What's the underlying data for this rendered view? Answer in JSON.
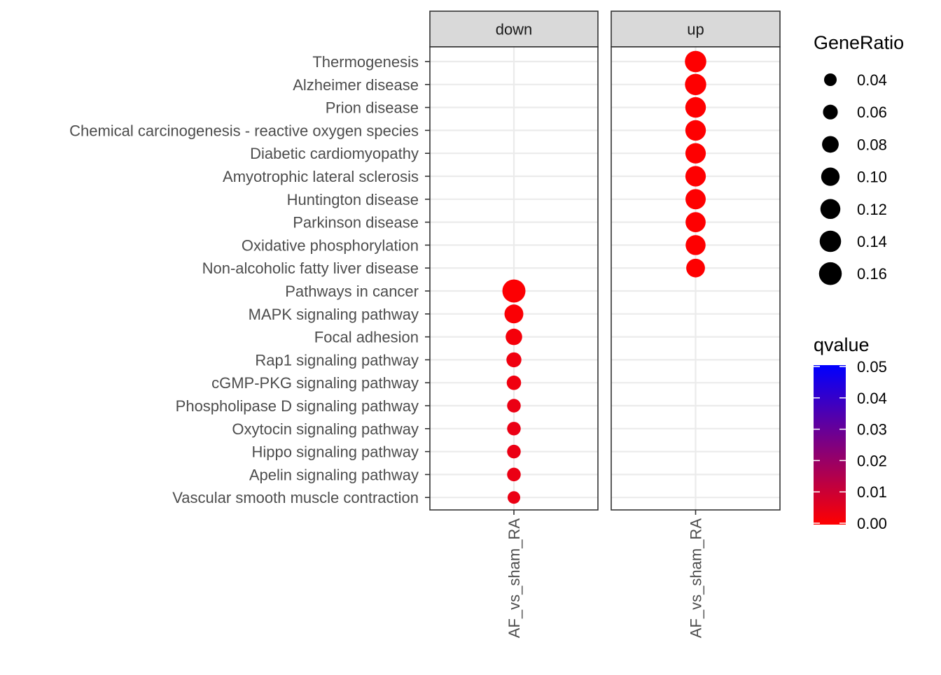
{
  "chart_data": {
    "type": "scatter",
    "title": "",
    "xlabel": "",
    "ylabel": "",
    "facets": [
      "down",
      "up"
    ],
    "x_categories": [
      "AF_vs_sham_RA"
    ],
    "categories": [
      "Thermogenesis",
      "Alzheimer disease",
      "Prion disease",
      "Chemical carcinogenesis - reactive oxygen species",
      "Diabetic cardiomyopathy",
      "Amyotrophic lateral sclerosis",
      "Huntington disease",
      "Parkinson disease",
      "Oxidative phosphorylation",
      "Non-alcoholic fatty liver disease",
      "Pathways in cancer",
      "MAPK signaling pathway",
      "Focal adhesion",
      "Rap1 signaling pathway",
      "cGMP-PKG signaling pathway",
      "Phospholipase D signaling pathway",
      "Oxytocin signaling pathway",
      "Hippo signaling pathway",
      "Apelin signaling pathway",
      "Vascular smooth muscle contraction"
    ],
    "points": [
      {
        "facet": "up",
        "x": "AF_vs_sham_RA",
        "y": "Thermogenesis",
        "GeneRatio": 0.14,
        "qvalue": 0.0001
      },
      {
        "facet": "up",
        "x": "AF_vs_sham_RA",
        "y": "Alzheimer disease",
        "GeneRatio": 0.138,
        "qvalue": 0.0001
      },
      {
        "facet": "up",
        "x": "AF_vs_sham_RA",
        "y": "Prion disease",
        "GeneRatio": 0.128,
        "qvalue": 0.0001
      },
      {
        "facet": "up",
        "x": "AF_vs_sham_RA",
        "y": "Chemical carcinogenesis - reactive oxygen species",
        "GeneRatio": 0.128,
        "qvalue": 0.0001
      },
      {
        "facet": "up",
        "x": "AF_vs_sham_RA",
        "y": "Diabetic cardiomyopathy",
        "GeneRatio": 0.126,
        "qvalue": 0.0001
      },
      {
        "facet": "up",
        "x": "AF_vs_sham_RA",
        "y": "Amyotrophic lateral sclerosis",
        "GeneRatio": 0.126,
        "qvalue": 0.0001
      },
      {
        "facet": "up",
        "x": "AF_vs_sham_RA",
        "y": "Huntington disease",
        "GeneRatio": 0.124,
        "qvalue": 0.0001
      },
      {
        "facet": "up",
        "x": "AF_vs_sham_RA",
        "y": "Parkinson disease",
        "GeneRatio": 0.122,
        "qvalue": 0.0001
      },
      {
        "facet": "up",
        "x": "AF_vs_sham_RA",
        "y": "Oxidative phosphorylation",
        "GeneRatio": 0.12,
        "qvalue": 0.0001
      },
      {
        "facet": "up",
        "x": "AF_vs_sham_RA",
        "y": "Non-alcoholic fatty liver disease",
        "GeneRatio": 0.104,
        "qvalue": 0.0001
      },
      {
        "facet": "down",
        "x": "AF_vs_sham_RA",
        "y": "Pathways in cancer",
        "GeneRatio": 0.165,
        "qvalue": 0.0005
      },
      {
        "facet": "down",
        "x": "AF_vs_sham_RA",
        "y": "MAPK signaling pathway",
        "GeneRatio": 0.106,
        "qvalue": 0.001
      },
      {
        "facet": "down",
        "x": "AF_vs_sham_RA",
        "y": "Focal adhesion",
        "GeneRatio": 0.078,
        "qvalue": 0.002
      },
      {
        "facet": "down",
        "x": "AF_vs_sham_RA",
        "y": "Rap1 signaling pathway",
        "GeneRatio": 0.062,
        "qvalue": 0.003
      },
      {
        "facet": "down",
        "x": "AF_vs_sham_RA",
        "y": "cGMP-PKG signaling pathway",
        "GeneRatio": 0.056,
        "qvalue": 0.003
      },
      {
        "facet": "down",
        "x": "AF_vs_sham_RA",
        "y": "Phospholipase D signaling pathway",
        "GeneRatio": 0.049,
        "qvalue": 0.004
      },
      {
        "facet": "down",
        "x": "AF_vs_sham_RA",
        "y": "Oxytocin signaling pathway",
        "GeneRatio": 0.049,
        "qvalue": 0.004
      },
      {
        "facet": "down",
        "x": "AF_vs_sham_RA",
        "y": "Hippo signaling pathway",
        "GeneRatio": 0.049,
        "qvalue": 0.004
      },
      {
        "facet": "down",
        "x": "AF_vs_sham_RA",
        "y": "Apelin signaling pathway",
        "GeneRatio": 0.049,
        "qvalue": 0.004
      },
      {
        "facet": "down",
        "x": "AF_vs_sham_RA",
        "y": "Vascular smooth muscle contraction",
        "GeneRatio": 0.04,
        "qvalue": 0.004
      }
    ],
    "size_legend": {
      "title": "GeneRatio",
      "breaks": [
        0.04,
        0.06,
        0.08,
        0.1,
        0.12,
        0.14,
        0.16
      ],
      "labels": [
        "0.04",
        "0.06",
        "0.08",
        "0.10",
        "0.12",
        "0.14",
        "0.16"
      ]
    },
    "color_legend": {
      "title": "qvalue",
      "range": [
        0,
        0.05
      ],
      "labels": [
        "0.05",
        "0.04",
        "0.03",
        "0.02",
        "0.01",
        "0.00"
      ],
      "low_color": "#ff0000",
      "high_color": "#0000ff"
    },
    "grid": true,
    "legend_position": "right"
  }
}
